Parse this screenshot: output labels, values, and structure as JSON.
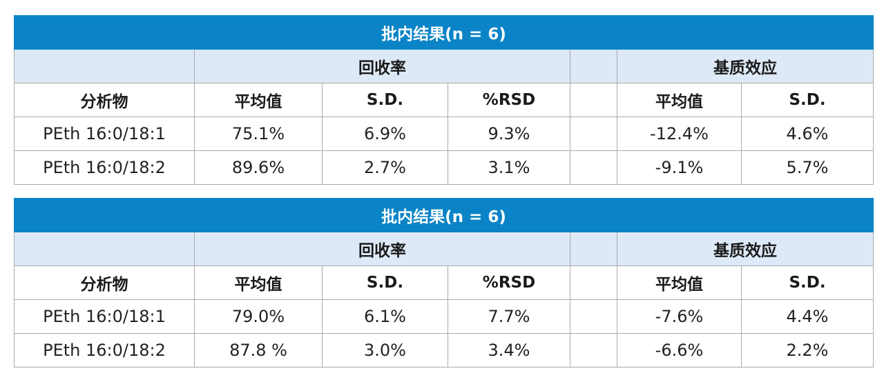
{
  "colors": {
    "title_bar": "#0a84c6",
    "group_row": "#dde9f6",
    "border": "#a9a9a9"
  },
  "tables": [
    {
      "title": "批内结果(n = 6)",
      "groups": {
        "recovery": "回收率",
        "matrix_effect": "基质效应"
      },
      "headers": {
        "analyte": "分析物",
        "rec_mean": "平均值",
        "rec_sd": "S.D.",
        "rec_rsd": "%RSD",
        "me_mean": "平均值",
        "me_sd": "S.D."
      },
      "rows": [
        {
          "analyte": "PEth 16:0/18:1",
          "rec_mean": "75.1%",
          "rec_sd": "6.9%",
          "rec_rsd": "9.3%",
          "me_mean": "-12.4%",
          "me_sd": "4.6%"
        },
        {
          "analyte": "PEth 16:0/18:2",
          "rec_mean": "89.6%",
          "rec_sd": "2.7%",
          "rec_rsd": "3.1%",
          "me_mean": "-9.1%",
          "me_sd": "5.7%"
        }
      ]
    },
    {
      "title": "批内结果(n = 6)",
      "groups": {
        "recovery": "回收率",
        "matrix_effect": "基质效应"
      },
      "headers": {
        "analyte": "分析物",
        "rec_mean": "平均值",
        "rec_sd": "S.D.",
        "rec_rsd": "%RSD",
        "me_mean": "平均值",
        "me_sd": "S.D."
      },
      "rows": [
        {
          "analyte": "PEth 16:0/18:1",
          "rec_mean": "79.0%",
          "rec_sd": "6.1%",
          "rec_rsd": "7.7%",
          "me_mean": "-7.6%",
          "me_sd": "4.4%"
        },
        {
          "analyte": "PEth 16:0/18:2",
          "rec_mean": "87.8 %",
          "rec_sd": "3.0%",
          "rec_rsd": "3.4%",
          "me_mean": "-6.6%",
          "me_sd": "2.2%"
        }
      ]
    }
  ]
}
